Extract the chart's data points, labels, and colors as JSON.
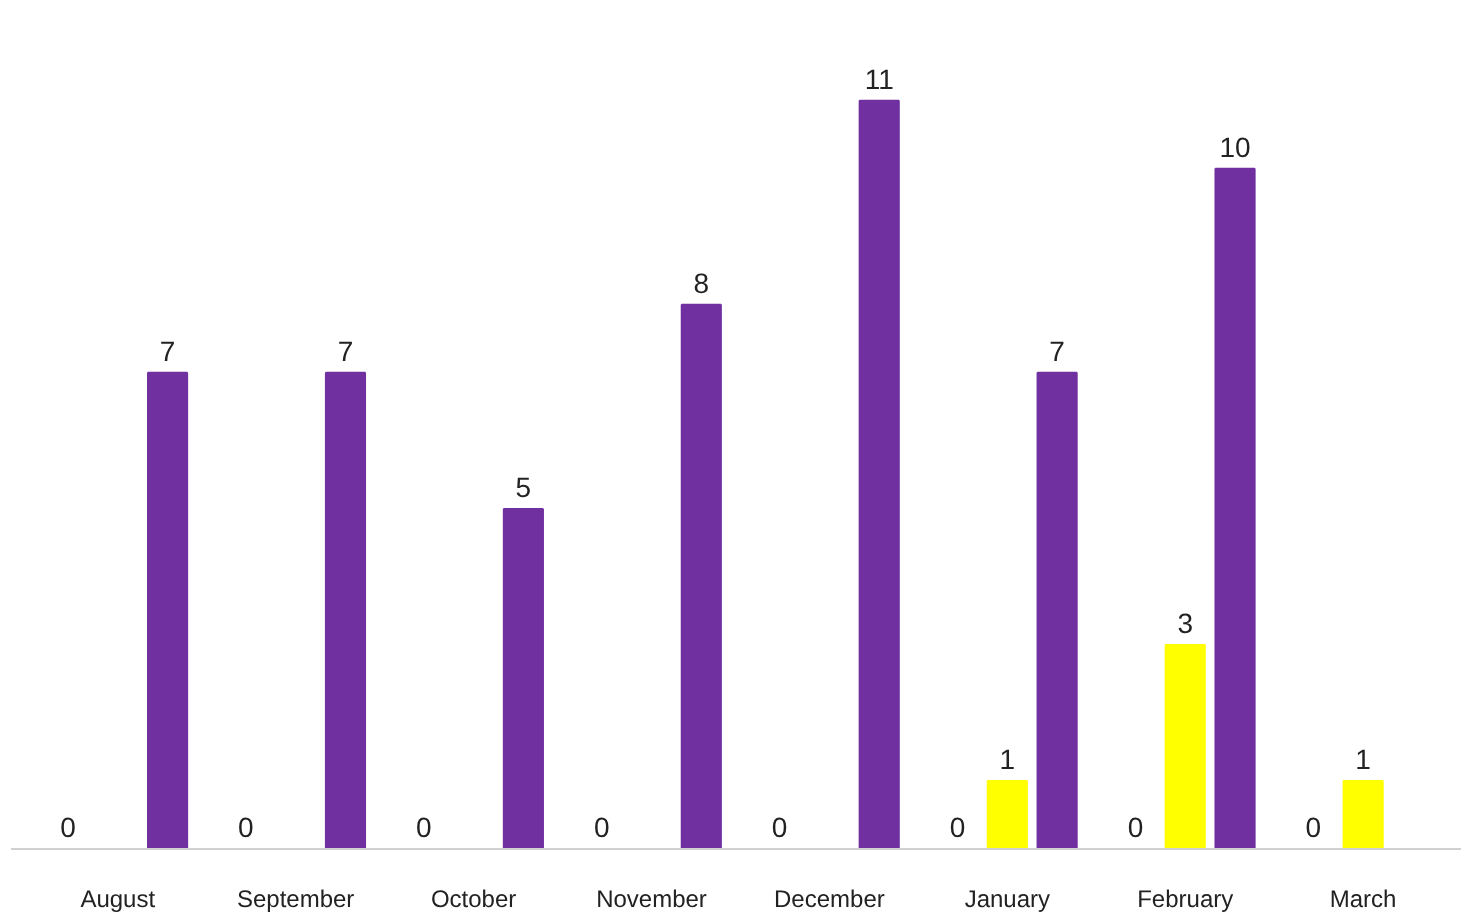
{
  "chart_data": {
    "type": "bar",
    "categories": [
      "August",
      "September",
      "October",
      "November",
      "December",
      "January",
      "February",
      "March"
    ],
    "series": [
      {
        "color": "#4472c4",
        "values": [
          0,
          0,
          0,
          0,
          0,
          0,
          0,
          0
        ]
      },
      {
        "color": "#ffff00",
        "values": [
          null,
          null,
          null,
          null,
          null,
          1,
          3,
          1
        ]
      },
      {
        "color": "#7030a0",
        "values": [
          7,
          7,
          5,
          8,
          11,
          7,
          10,
          null
        ]
      }
    ],
    "data_labels": true,
    "grid": false
  }
}
